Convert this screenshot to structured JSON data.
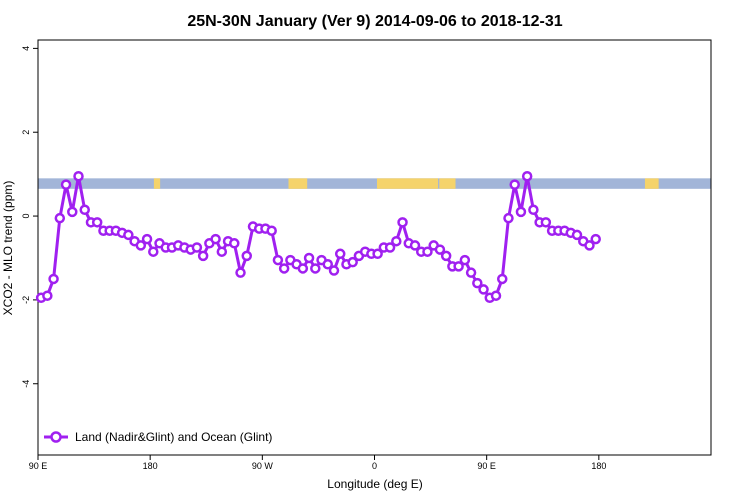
{
  "chart_data": {
    "type": "line",
    "title": "25N-30N January (Ver 9)   2014-09-06 to 2018-12-31",
    "xlabel": "Longitude (deg E)",
    "ylabel": "XCO2 - MLO trend (ppm)",
    "xlim": [
      -90,
      450
    ],
    "ylim": [
      -5.7,
      4.2
    ],
    "xticks": [
      {
        "value": -90,
        "label": "90 E"
      },
      {
        "value": 0,
        "label": "180"
      },
      {
        "value": 90,
        "label": "90 W"
      },
      {
        "value": 180,
        "label": "0"
      },
      {
        "value": 270,
        "label": "90 E"
      },
      {
        "value": 360,
        "label": "180"
      }
    ],
    "yticks": [
      -4,
      -2,
      0,
      2,
      4
    ],
    "colors": {
      "series": "#a020f0",
      "ocean": "#a2b5d8",
      "land": "#f5d36b"
    },
    "series": [
      {
        "name": "Land (Nadir&Glint) and Ocean (Glint)",
        "x": [
          -87.5,
          -82.5,
          -77.5,
          -72.5,
          -67.5,
          -62.5,
          -57.5,
          -52.5,
          -47.5,
          -42.5,
          -37.5,
          -32.5,
          -27.5,
          -22.5,
          -17.5,
          -12.5,
          -7.5,
          -2.5,
          2.5,
          7.5,
          12.5,
          17.5,
          22.5,
          27.5,
          32.5,
          37.5,
          42.5,
          47.5,
          52.5,
          57.5,
          62.5,
          67.5,
          72.5,
          77.5,
          82.5,
          87.5,
          92.5,
          97.5,
          102.5,
          107.5,
          112.5,
          117.5,
          122.5,
          127.5,
          132.5,
          137.5,
          142.5,
          147.5,
          152.5,
          157.5,
          162.5,
          167.5,
          172.5,
          177.5,
          182.5,
          187.5,
          192.5,
          197.5,
          202.5,
          207.5,
          212.5,
          217.5,
          222.5,
          227.5,
          232.5,
          237.5,
          242.5,
          247.5,
          252.5,
          257.5,
          262.5,
          267.5,
          272.5,
          277.5,
          282.5,
          287.5,
          292.5,
          297.5,
          302.5,
          307.5,
          312.5,
          317.5,
          322.5,
          327.5,
          332.5,
          337.5,
          342.5,
          347.5,
          352.5,
          357.5
        ],
        "y": [
          -1.95,
          -1.9,
          -1.5,
          -0.05,
          0.75,
          0.1,
          0.95,
          0.15,
          -0.15,
          -0.15,
          -0.35,
          -0.35,
          -0.35,
          -0.4,
          -0.45,
          -0.6,
          -0.7,
          -0.55,
          -0.85,
          -0.65,
          -0.75,
          -0.75,
          -0.7,
          -0.75,
          -0.8,
          -0.75,
          -0.95,
          -0.65,
          -0.55,
          -0.85,
          -0.6,
          -0.65,
          -1.35,
          -0.95,
          -0.25,
          -0.3,
          -0.3,
          -0.35,
          -1.05,
          -1.25,
          -1.05,
          -1.15,
          -1.25,
          -1.0,
          -1.25,
          -1.05,
          -1.15,
          -1.3,
          -0.9,
          -1.15,
          -1.1,
          -0.95,
          -0.85,
          -0.9,
          -0.9,
          -0.75,
          -0.75,
          -0.6,
          -0.15,
          -0.65,
          -0.7,
          -0.85,
          -0.85,
          -0.7,
          -0.8,
          -0.95,
          -1.2,
          -1.2,
          -1.05,
          -1.35,
          -1.6,
          -1.75,
          -1.95,
          -1.9,
          -1.5,
          -0.05,
          0.75,
          0.1,
          0.95,
          0.15,
          -0.15,
          -0.15,
          -0.35,
          -0.35,
          -0.35,
          -0.4,
          -0.45,
          -0.6,
          -0.7,
          -0.55
        ]
      }
    ],
    "legend": {
      "position": "bottom-left",
      "label": "Land (Nadir&Glint) and Ocean (Glint)"
    },
    "land_ocean_strip": {
      "y_range": [
        0.65,
        0.9
      ],
      "land_segments": [
        [
          3,
          8
        ],
        [
          111,
          126
        ],
        [
          182,
          231
        ],
        [
          232,
          245
        ],
        [
          397,
          408
        ]
      ]
    }
  }
}
